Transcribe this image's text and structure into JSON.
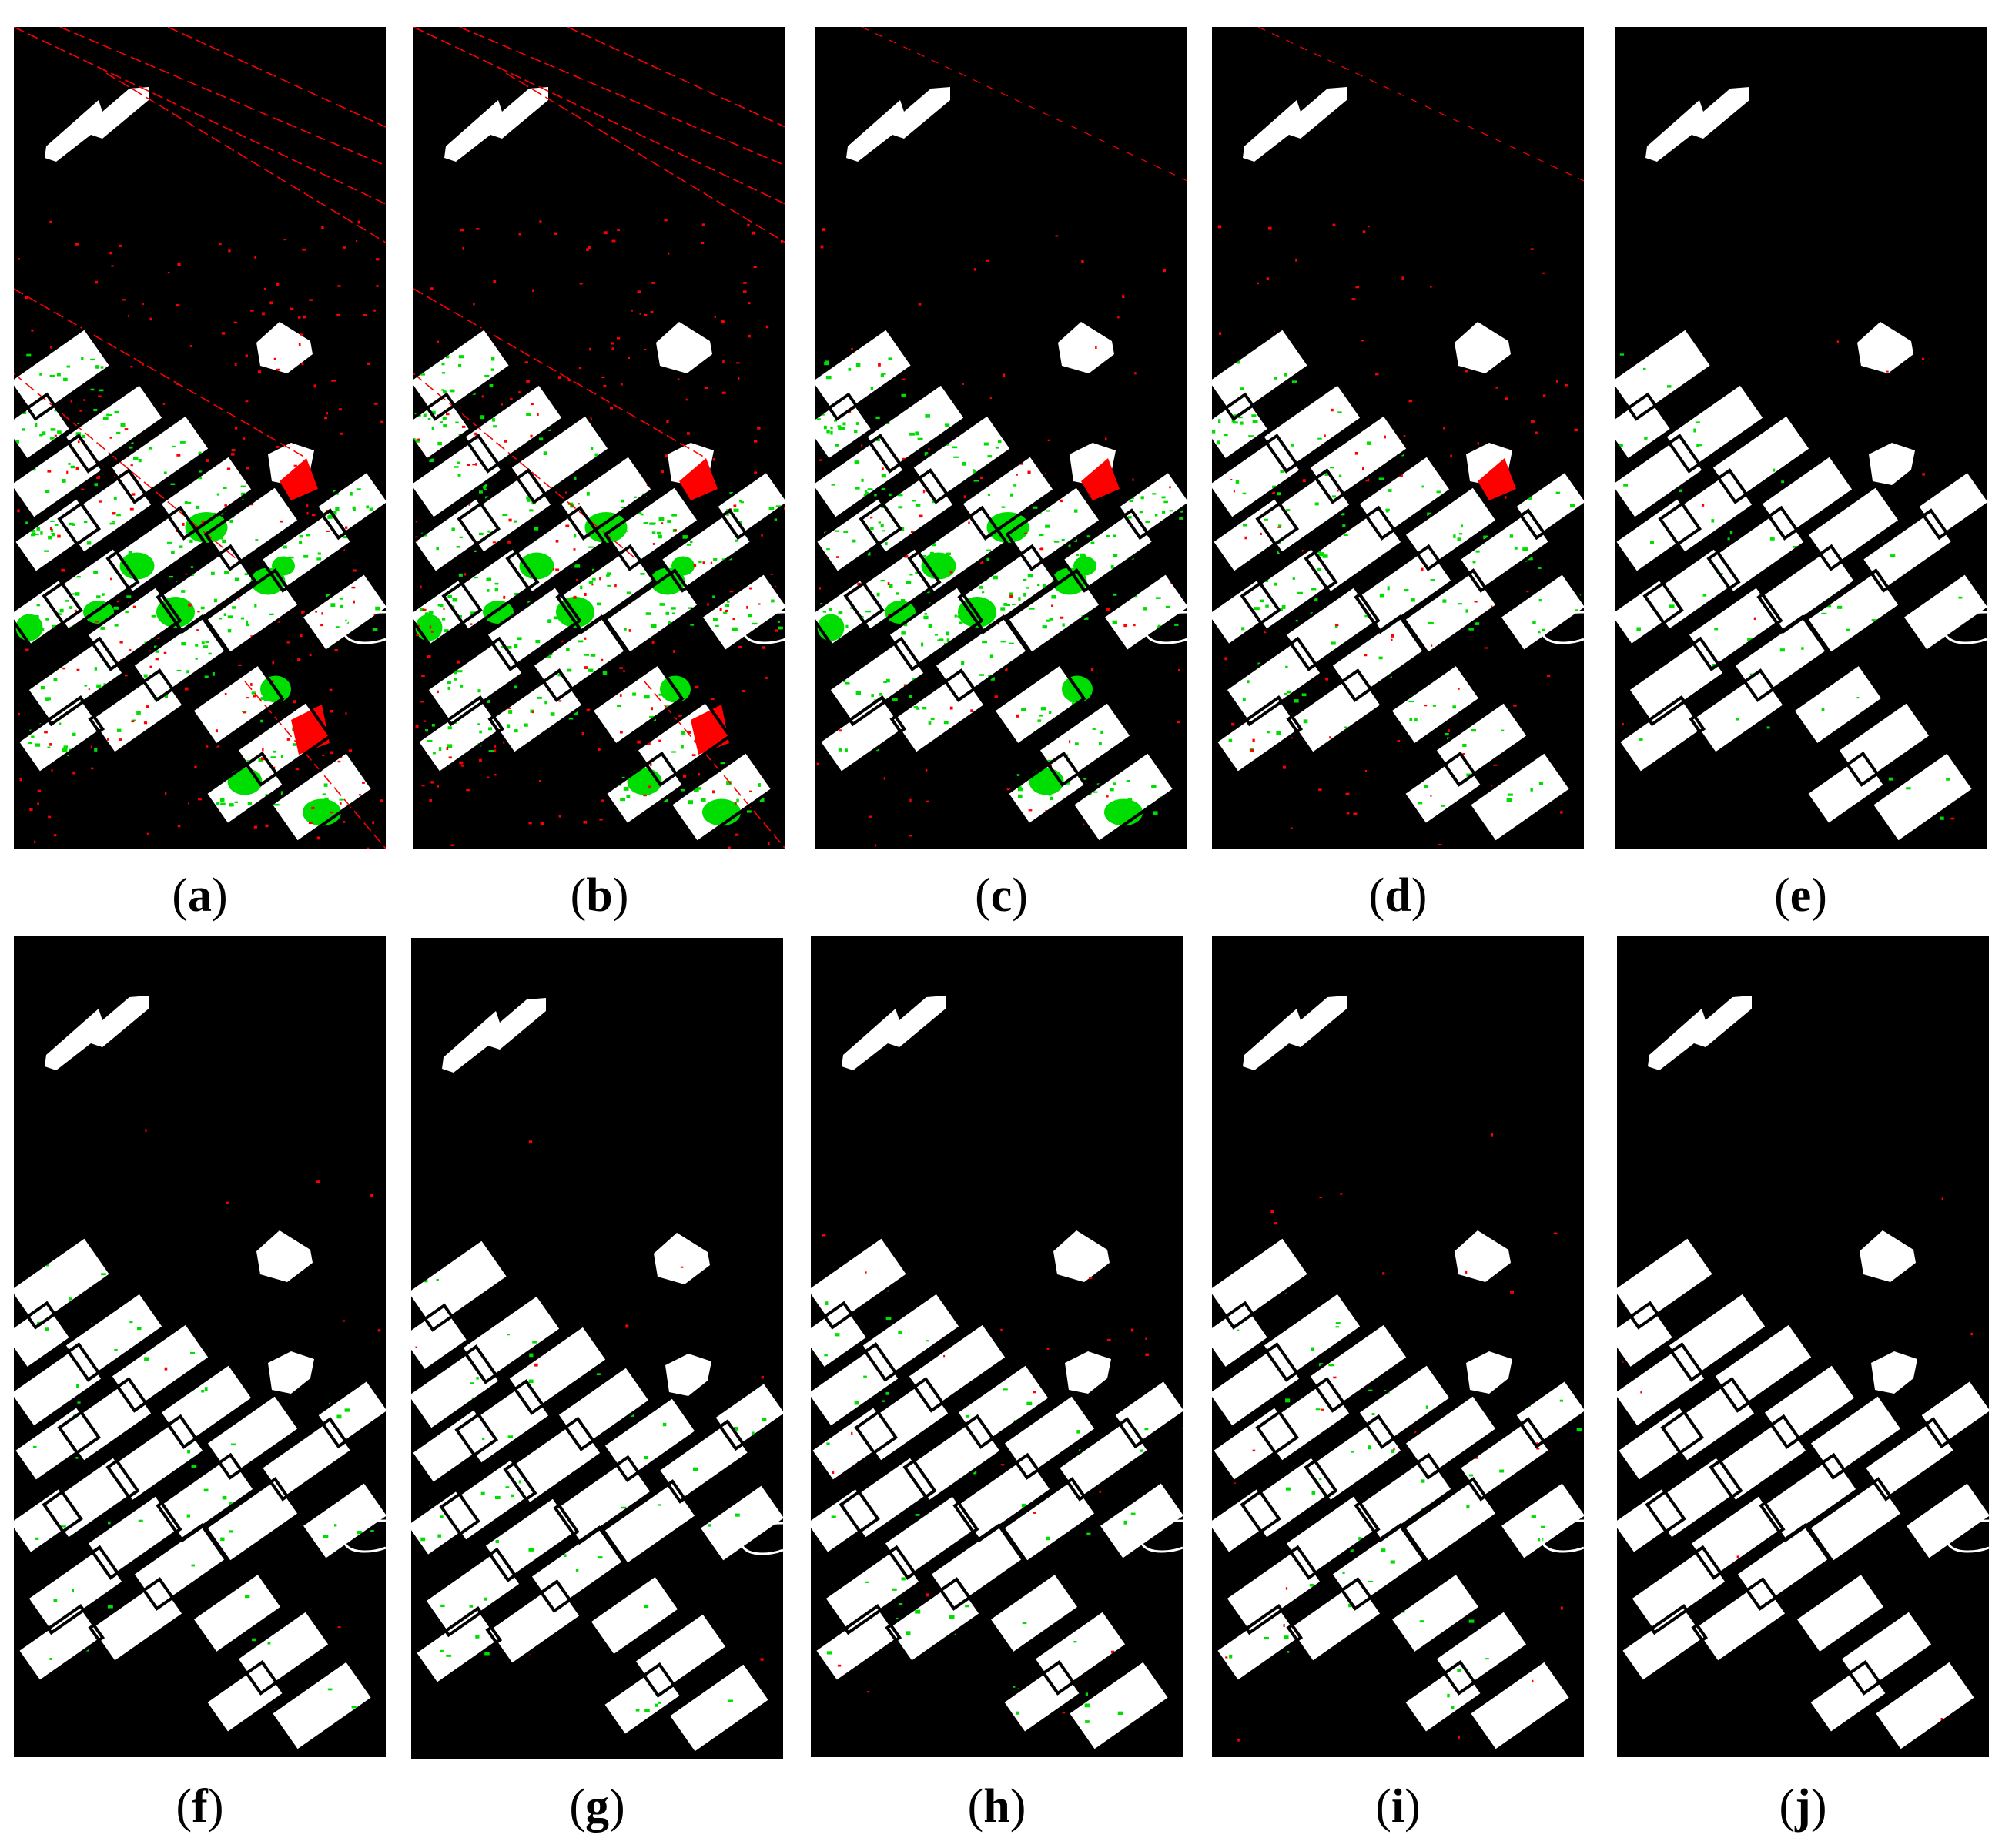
{
  "panels": [
    {
      "id": "a",
      "letter": "a",
      "noise": "heavy",
      "green": "heavy"
    },
    {
      "id": "b",
      "letter": "b",
      "noise": "heavy",
      "green": "heavy"
    },
    {
      "id": "c",
      "letter": "c",
      "noise": "light",
      "green": "heavy"
    },
    {
      "id": "d",
      "letter": "d",
      "noise": "light",
      "green": "light"
    },
    {
      "id": "e",
      "letter": "e",
      "noise": "none",
      "green": "minimal"
    },
    {
      "id": "f",
      "letter": "f",
      "noise": "none",
      "green": "minimal"
    },
    {
      "id": "g",
      "letter": "g",
      "noise": "none",
      "green": "minimal"
    },
    {
      "id": "h",
      "letter": "h",
      "noise": "trace",
      "green": "minimal"
    },
    {
      "id": "i",
      "letter": "i",
      "noise": "trace",
      "green": "minimal"
    },
    {
      "id": "j",
      "letter": "j",
      "noise": "none",
      "green": "none"
    }
  ],
  "colors": {
    "background": "#000000",
    "field": "#ffffff",
    "false_positive": "#ff0000",
    "false_negative": "#00dd00"
  }
}
